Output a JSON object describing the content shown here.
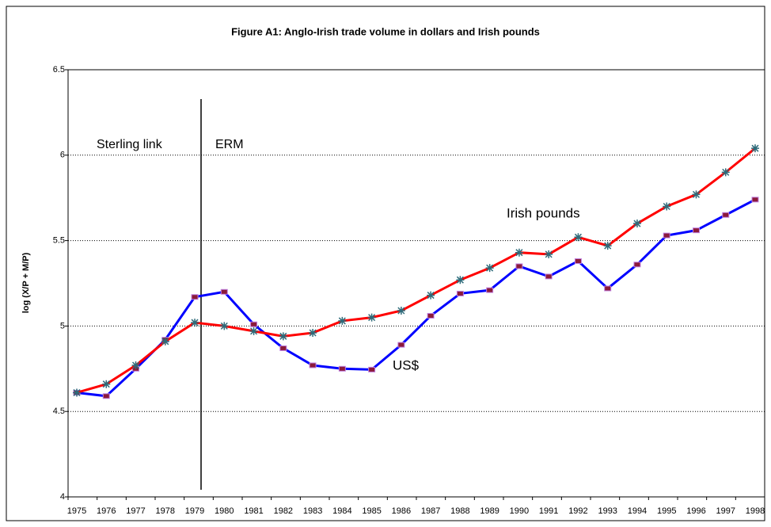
{
  "chart_data": {
    "type": "line",
    "title": "Figure A1: Anglo-Irish trade volume in dollars and Irish pounds",
    "y_label": "log (X/P + M/P)",
    "categories": [
      "1975",
      "1976",
      "1977",
      "1978",
      "1979",
      "1980",
      "1981",
      "1982",
      "1983",
      "1984",
      "1985",
      "1986",
      "1987",
      "1988",
      "1989",
      "1990",
      "1991",
      "1992",
      "1993",
      "1994",
      "1995",
      "1996",
      "1997",
      "1998"
    ],
    "series": [
      {
        "name": "Irish pounds",
        "color": "#ff0000",
        "marker_color": "#2e6b7a",
        "values": [
          4.61,
          4.66,
          4.77,
          4.91,
          5.02,
          5.0,
          4.97,
          4.94,
          4.96,
          5.03,
          5.05,
          5.09,
          5.18,
          5.27,
          5.34,
          5.43,
          5.42,
          5.52,
          5.47,
          5.6,
          5.7,
          5.77,
          5.9,
          6.04
        ]
      },
      {
        "name": "US$",
        "color": "#0000ff",
        "marker_color": "#8b1a3a",
        "values": [
          4.61,
          4.59,
          4.75,
          4.92,
          5.17,
          5.2,
          5.01,
          4.87,
          4.77,
          4.75,
          4.745,
          4.89,
          5.06,
          5.19,
          5.21,
          5.35,
          5.29,
          5.38,
          5.22,
          5.36,
          5.53,
          5.56,
          5.65,
          5.74
        ]
      }
    ],
    "annotations": [
      "Sterling link",
      "ERM"
    ],
    "ylim": [
      4,
      6.5
    ],
    "yticks": [
      4,
      4.5,
      5,
      5.5,
      6,
      6.5
    ],
    "grid": true
  }
}
